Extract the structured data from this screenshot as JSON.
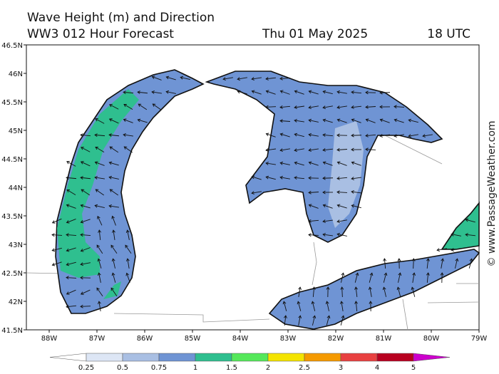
{
  "header": {
    "title": "Wave Height (m) and Direction",
    "model": "WW3 012 Hour Forecast",
    "date": "Thu 01 May 2025",
    "time": "18 UTC"
  },
  "map": {
    "lat_labels": [
      "46.5N",
      "46N",
      "45.5N",
      "45N",
      "44.5N",
      "44N",
      "43.5N",
      "43N",
      "42.5N",
      "42N",
      "41.5N"
    ],
    "lon_labels": [
      "88W",
      "87W",
      "86W",
      "85W",
      "84W",
      "83W",
      "82W",
      "81W",
      "80W",
      "79W"
    ]
  },
  "legend": {
    "labels": [
      "0.25",
      "0.5",
      "0.75",
      "1",
      "1.5",
      "2",
      "2.5",
      "3",
      "4",
      "5"
    ],
    "colors": [
      "#ffffff",
      "#dde6f5",
      "#a9bfe3",
      "#6f94d4",
      "#2fbf8f",
      "#55e85a",
      "#f4e400",
      "#f59a00",
      "#e84040",
      "#b80020",
      "#cc00cc"
    ]
  },
  "watermark": "© www.PassageWeather.com"
}
